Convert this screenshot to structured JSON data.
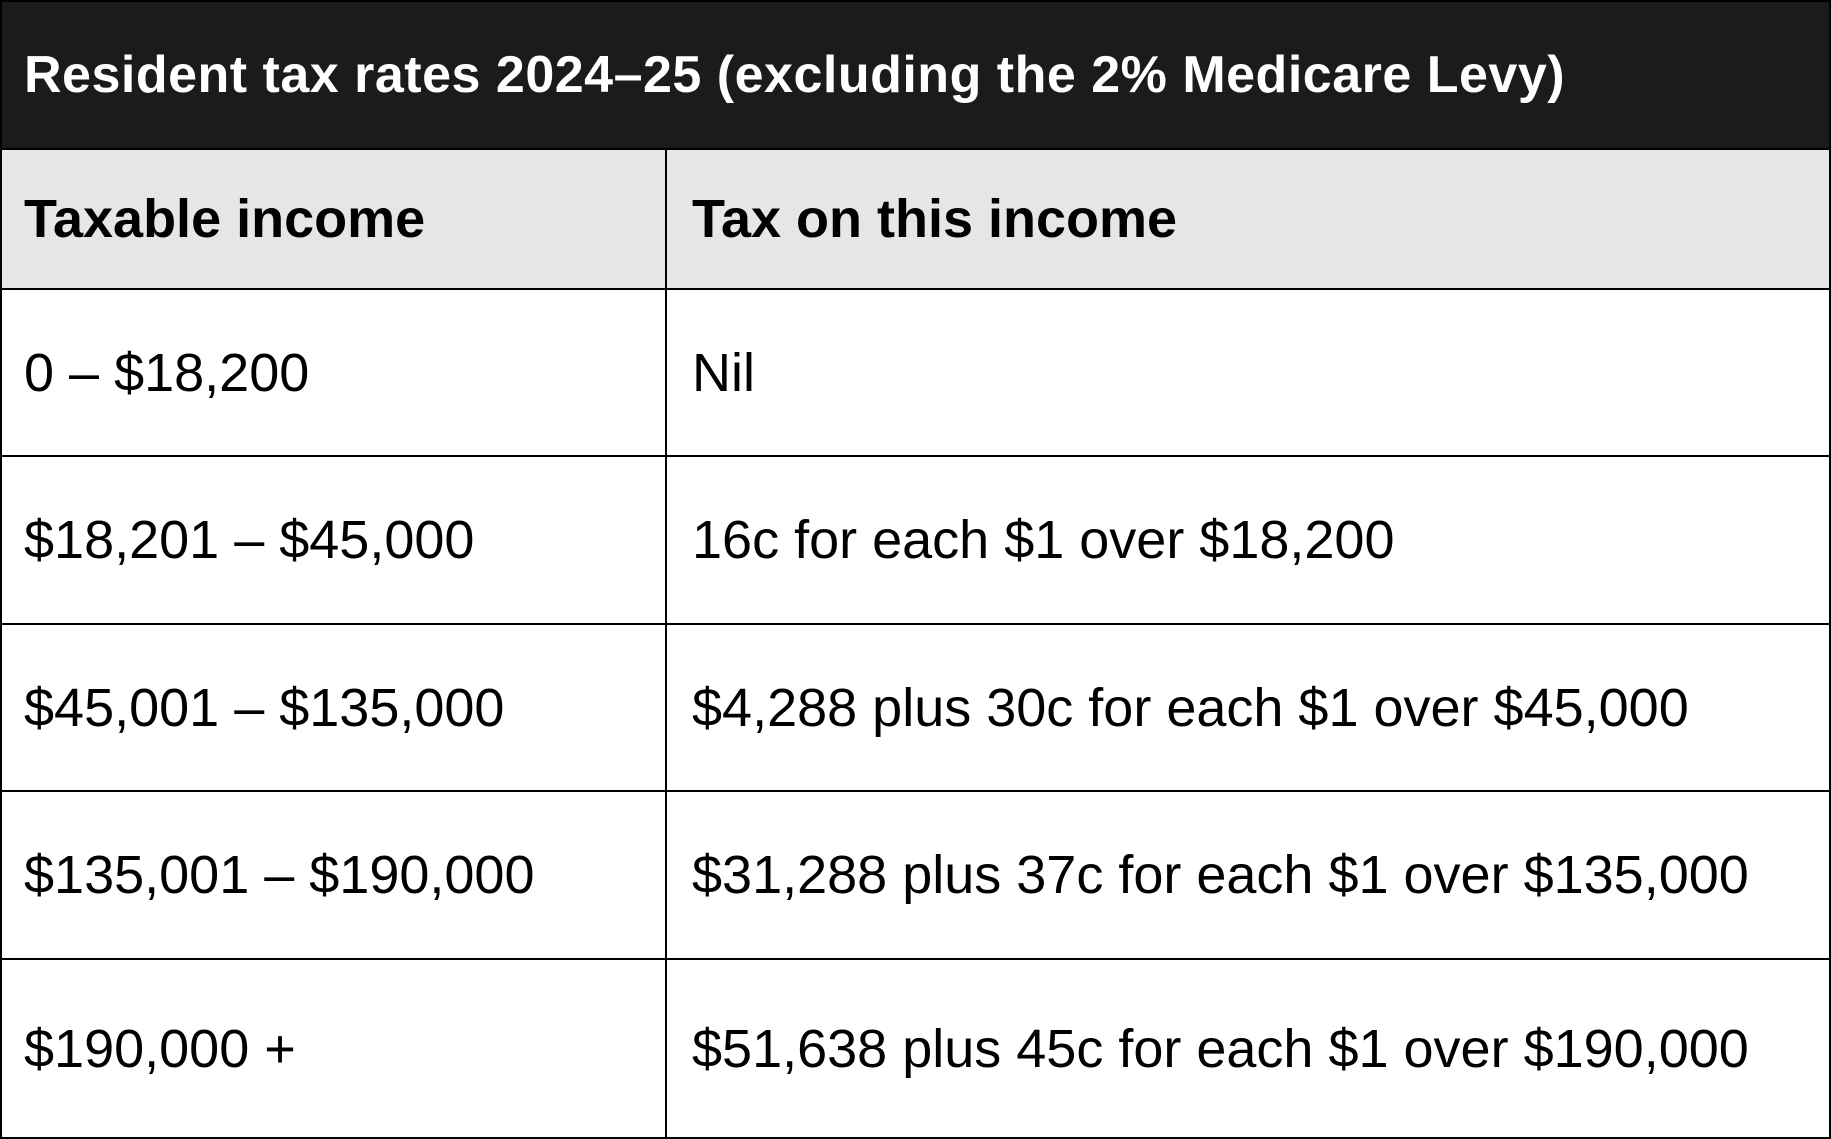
{
  "table": {
    "title": "Resident tax rates 2024–25 (excluding the 2% Medicare Levy)",
    "columns": {
      "taxable_income": "Taxable income",
      "tax_on_income": "Tax on this income"
    },
    "rows": [
      {
        "taxable_income": "0 – $18,200",
        "tax_on_income": "Nil"
      },
      {
        "taxable_income": "$18,201 – $45,000",
        "tax_on_income": "16c for each $1 over $18,200"
      },
      {
        "taxable_income": "$45,001 – $135,000",
        "tax_on_income": "$4,288 plus 30c for each $1 over $45,000"
      },
      {
        "taxable_income": "$135,001 – $190,000",
        "tax_on_income": "$31,288 plus 37c for each $1 over $135,000"
      },
      {
        "taxable_income": "$190,000 +",
        "tax_on_income": "$51,638 plus 45c for each $1 over $190,000"
      }
    ],
    "colors": {
      "title_background": "#1b1b1b",
      "title_text": "#ffffff",
      "header_background": "#e6e6e6",
      "body_background": "#ffffff",
      "border": "#000000",
      "body_text": "#000000"
    }
  }
}
